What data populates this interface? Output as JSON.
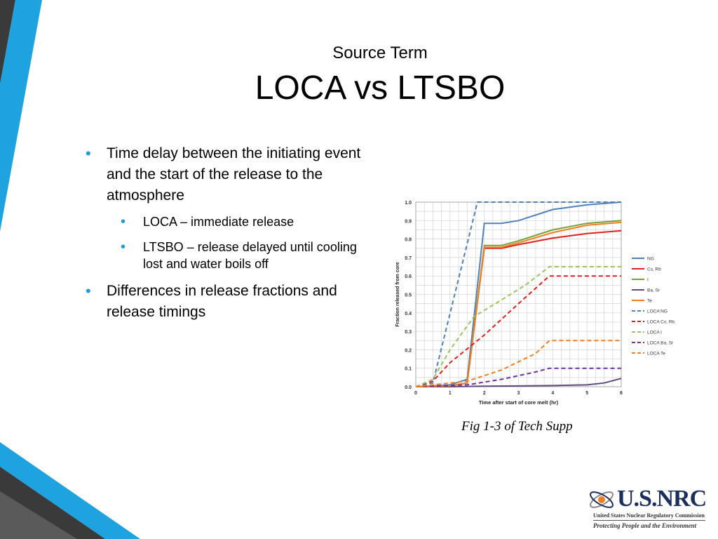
{
  "slide": {
    "subtitle": "Source Term",
    "title": "LOCA vs LTSBO",
    "bullets": [
      {
        "text": "Time delay between the initiating event and the start of the release to the atmosphere",
        "level": 1
      },
      {
        "text": "LOCA – immediate release",
        "level": 2
      },
      {
        "text": "LTSBO – release delayed until cooling lost and water boils off",
        "level": 2
      },
      {
        "text": "Differences in release fractions and release timings",
        "level": 1
      }
    ],
    "caption": "Fig 1-3 of Tech Supp"
  },
  "logo": {
    "name": "U.S.NRC",
    "line1": "United States Nuclear Regulatory Commission",
    "line2": "Protecting People and the Environment"
  },
  "chart_data": {
    "type": "line",
    "xlabel": "Time after start of core melt (hr)",
    "ylabel": "Fraction released from core",
    "xlim": [
      0,
      6
    ],
    "ylim": [
      0,
      1.0
    ],
    "xticks": [
      "0",
      "1",
      "2",
      "3",
      "4",
      "5",
      "6"
    ],
    "yticks": [
      "0.0",
      "0.1",
      "0.2",
      "0.3",
      "0.4",
      "0.5",
      "0.6",
      "0.7",
      "0.8",
      "0.9",
      "1.0"
    ],
    "grid": true,
    "legend_position": "right",
    "series": [
      {
        "name": "NG",
        "color": "#4F81BD",
        "dash": false,
        "x": [
          0,
          1,
          1.5,
          2,
          2.5,
          3,
          4,
          5,
          6
        ],
        "y": [
          0,
          0.01,
          0.04,
          0.885,
          0.885,
          0.9,
          0.96,
          0.985,
          1.0
        ]
      },
      {
        "name": "Cs, Rb",
        "color": "#E0201B",
        "dash": false,
        "x": [
          0,
          1,
          1.5,
          2,
          2.5,
          3,
          4,
          5,
          6
        ],
        "y": [
          0,
          0.005,
          0.02,
          0.75,
          0.75,
          0.77,
          0.805,
          0.83,
          0.845
        ]
      },
      {
        "name": "I",
        "color": "#77A03A",
        "dash": false,
        "x": [
          0,
          1,
          1.5,
          2,
          2.5,
          3,
          4,
          5,
          6
        ],
        "y": [
          0,
          0.005,
          0.02,
          0.765,
          0.765,
          0.79,
          0.85,
          0.885,
          0.9
        ]
      },
      {
        "name": "Ba, Sr",
        "color": "#604A7B",
        "dash": false,
        "x": [
          0,
          1,
          2,
          3,
          4,
          5,
          5.5,
          6
        ],
        "y": [
          0,
          0.0,
          0.003,
          0.004,
          0.006,
          0.01,
          0.02,
          0.045
        ]
      },
      {
        "name": "Te",
        "color": "#F07F1E",
        "dash": false,
        "x": [
          0,
          1,
          1.5,
          2,
          2.5,
          3,
          4,
          5,
          6
        ],
        "y": [
          0,
          0.005,
          0.02,
          0.755,
          0.755,
          0.78,
          0.835,
          0.875,
          0.89
        ]
      },
      {
        "name": "LOCA NG",
        "color": "#4F81BD",
        "dash": true,
        "x": [
          0,
          0.5,
          1.8,
          6
        ],
        "y": [
          0,
          0.02,
          1.0,
          1.0
        ]
      },
      {
        "name": "LOCA Cs, Rb",
        "color": "#E0201B",
        "dash": true,
        "x": [
          0,
          0.5,
          1.0,
          2.0,
          3.0,
          3.9,
          6
        ],
        "y": [
          0,
          0.03,
          0.13,
          0.28,
          0.45,
          0.6,
          0.6
        ]
      },
      {
        "name": "LOCA I",
        "color": "#9BC560",
        "dash": true,
        "x": [
          0,
          0.5,
          1.0,
          1.7,
          2.5,
          3.2,
          3.9,
          6
        ],
        "y": [
          0,
          0.04,
          0.2,
          0.38,
          0.47,
          0.55,
          0.65,
          0.65
        ]
      },
      {
        "name": "LOCA Ba, Sr",
        "color": "#7030A0",
        "dash": true,
        "x": [
          0,
          1.5,
          2.5,
          3.5,
          3.9,
          6
        ],
        "y": [
          0,
          0.01,
          0.04,
          0.08,
          0.1,
          0.1
        ]
      },
      {
        "name": "LOCA Te",
        "color": "#F07F1E",
        "dash": true,
        "x": [
          0,
          1.5,
          2.5,
          3.5,
          3.9,
          6
        ],
        "y": [
          0,
          0.03,
          0.09,
          0.18,
          0.25,
          0.25
        ]
      }
    ]
  }
}
